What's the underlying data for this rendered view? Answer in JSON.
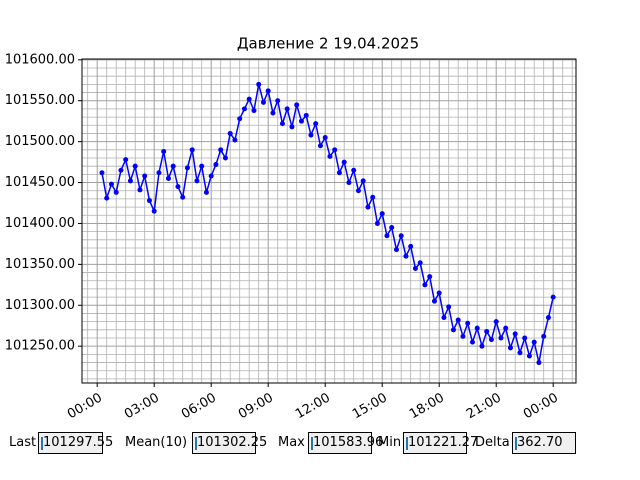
{
  "chart_data": {
    "type": "line",
    "title": "Давление 2 19.04.2025",
    "color": "#0000ff",
    "x": [
      0.25,
      0.5,
      0.75,
      1,
      1.25,
      1.5,
      1.75,
      2,
      2.25,
      2.5,
      2.75,
      3,
      3.25,
      3.5,
      3.75,
      4,
      4.25,
      4.5,
      4.75,
      5,
      5.25,
      5.5,
      5.75,
      6,
      6.25,
      6.5,
      6.75,
      7,
      7.25,
      7.5,
      7.75,
      8,
      8.25,
      8.5,
      8.75,
      9,
      9.25,
      9.5,
      9.75,
      10,
      10.25,
      10.5,
      10.75,
      11,
      11.25,
      11.5,
      11.75,
      12,
      12.25,
      12.5,
      12.75,
      13,
      13.25,
      13.5,
      13.75,
      14,
      14.25,
      14.5,
      14.75,
      15,
      15.25,
      15.5,
      15.75,
      16,
      16.25,
      16.5,
      16.75,
      17,
      17.25,
      17.5,
      17.75,
      18,
      18.25,
      18.5,
      18.75,
      19,
      19.25,
      19.5,
      19.75,
      20,
      20.25,
      20.5,
      20.75,
      21,
      21.25,
      21.5,
      21.75,
      22,
      22.25,
      22.5,
      22.75,
      23,
      23.25,
      23.5,
      23.75,
      24
    ],
    "values": [
      101462,
      101431,
      101448,
      101438,
      101465,
      101478,
      101452,
      101470,
      101441,
      101458,
      101428,
      101415,
      101462,
      101488,
      101455,
      101470,
      101445,
      101432,
      101468,
      101490,
      101452,
      101470,
      101438,
      101458,
      101472,
      101490,
      101480,
      101510,
      101502,
      101528,
      101540,
      101552,
      101538,
      101570,
      101548,
      101562,
      101535,
      101550,
      101522,
      101540,
      101518,
      101545,
      101525,
      101532,
      101508,
      101522,
      101495,
      101505,
      101482,
      101490,
      101462,
      101475,
      101450,
      101465,
      101440,
      101452,
      101420,
      101432,
      101400,
      101412,
      101385,
      101395,
      101368,
      101385,
      101360,
      101372,
      101345,
      101352,
      101325,
      101335,
      101305,
      101315,
      101285,
      101298,
      101270,
      101282,
      101262,
      101278,
      101255,
      101272,
      101250,
      101268,
      101258,
      101280,
      101260,
      101272,
      101248,
      101265,
      101242,
      101260,
      101238,
      101255,
      101230,
      101262,
      101285,
      101310
    ],
    "xlim": [
      -0.8,
      25.2
    ],
    "ylim": [
      101205,
      101601
    ],
    "xticks": [
      {
        "value": 0,
        "label": "00:00"
      },
      {
        "value": 3,
        "label": "03:00"
      },
      {
        "value": 6,
        "label": "06:00"
      },
      {
        "value": 9,
        "label": "09:00"
      },
      {
        "value": 12,
        "label": "12:00"
      },
      {
        "value": 15,
        "label": "15:00"
      },
      {
        "value": 18,
        "label": "18:00"
      },
      {
        "value": 21,
        "label": "21:00"
      },
      {
        "value": 24,
        "label": "00:00"
      }
    ],
    "yticks": [
      {
        "value": 101250,
        "label": "101250.00"
      },
      {
        "value": 101300,
        "label": "101300.00"
      },
      {
        "value": 101350,
        "label": "101350.00"
      },
      {
        "value": 101400,
        "label": "101400.00"
      },
      {
        "value": 101450,
        "label": "101450.00"
      },
      {
        "value": 101500,
        "label": "101500.00"
      },
      {
        "value": 101550,
        "label": "101550.00"
      },
      {
        "value": 101600,
        "label": "101600.00"
      }
    ],
    "xminorticks": [
      -0.5,
      0.5,
      1,
      1.5,
      2,
      2.5,
      3.5,
      4,
      4.5,
      5,
      5.5,
      6.5,
      7,
      7.5,
      8,
      8.5,
      9.5,
      10,
      10.5,
      11,
      11.5,
      12.5,
      13,
      13.5,
      14,
      14.5,
      15.5,
      16,
      16.5,
      17,
      17.5,
      18.5,
      19,
      19.5,
      20,
      20.5,
      21.5,
      22,
      22.5,
      23,
      23.5,
      24.5,
      25
    ],
    "yminorticks": [
      101210,
      101220,
      101230,
      101240,
      101260,
      101270,
      101280,
      101290,
      101310,
      101320,
      101330,
      101340,
      101360,
      101370,
      101380,
      101390,
      101410,
      101420,
      101430,
      101440,
      101460,
      101470,
      101480,
      101490,
      101510,
      101520,
      101530,
      101540,
      101560,
      101570,
      101580,
      101590
    ],
    "grid": true
  },
  "stats": [
    {
      "label": "Last",
      "value": "101297.55"
    },
    {
      "label": "Mean(10)",
      "value": "101302.25"
    },
    {
      "label": "Max",
      "value": "101583.96"
    },
    {
      "label": "Min",
      "value": "101221.27"
    },
    {
      "label": "Delta",
      "value": "362.70"
    }
  ]
}
